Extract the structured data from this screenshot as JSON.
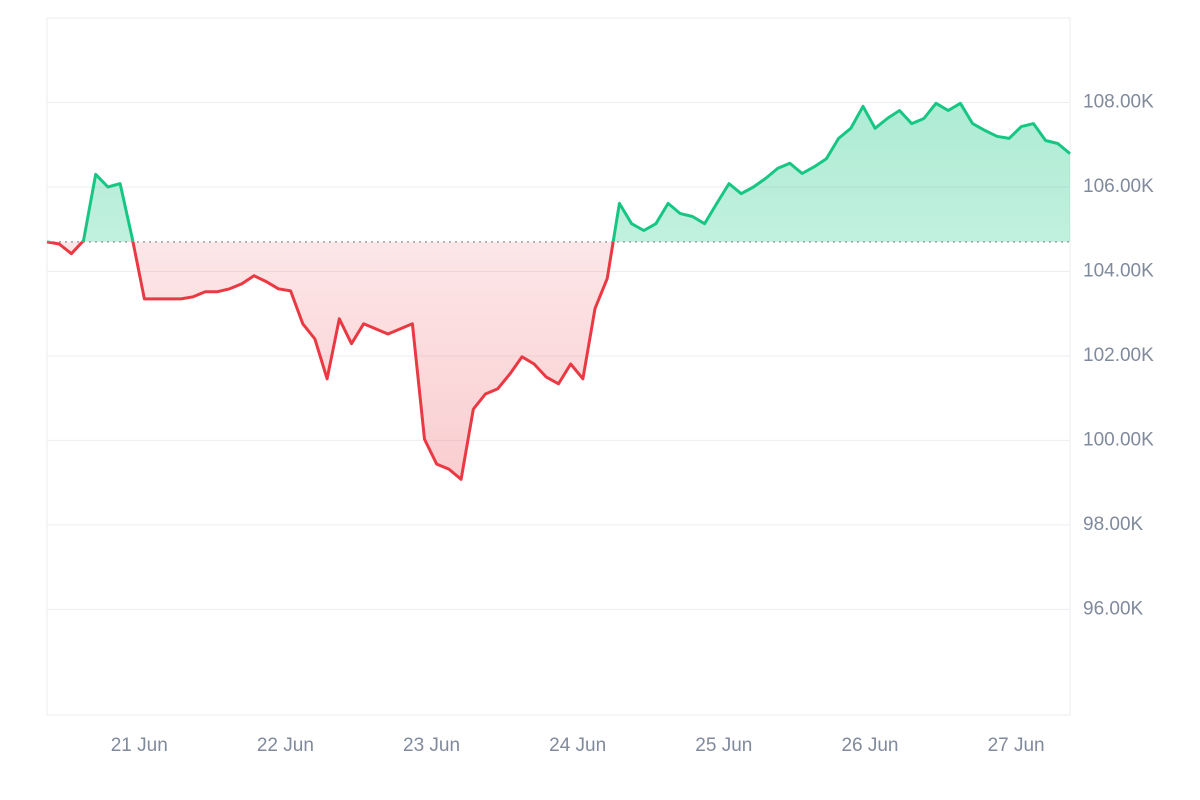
{
  "chart_data": {
    "type": "line",
    "categories": [
      null,
      null,
      null,
      null,
      null,
      null,
      null,
      "21 Jun",
      null,
      null,
      null,
      null,
      null,
      null,
      null,
      null,
      null,
      null,
      null,
      "22 Jun",
      null,
      null,
      null,
      null,
      null,
      null,
      null,
      null,
      null,
      null,
      null,
      "23 Jun",
      null,
      null,
      null,
      null,
      null,
      null,
      null,
      null,
      null,
      null,
      null,
      "24 Jun",
      null,
      null,
      null,
      null,
      null,
      null,
      null,
      null,
      null,
      null,
      null,
      "25 Jun",
      null,
      null,
      null,
      null,
      null,
      null,
      null,
      null,
      null,
      null,
      null,
      "26 Jun",
      null,
      null,
      null,
      null,
      null,
      null,
      null,
      null,
      null,
      null,
      null,
      "27 Jun",
      null,
      null,
      null,
      null,
      null
    ],
    "values": [
      104700,
      104650,
      104420,
      104730,
      106300,
      106000,
      106080,
      104780,
      103350,
      103350,
      103350,
      103350,
      103400,
      103520,
      103520,
      103590,
      103710,
      103900,
      103760,
      103590,
      103540,
      102760,
      102400,
      101460,
      102880,
      102290,
      102760,
      102640,
      102520,
      102640,
      102760,
      100030,
      99440,
      99320,
      99080,
      100740,
      101100,
      101220,
      101570,
      101980,
      101810,
      101500,
      101340,
      101810,
      101460,
      103120,
      103830,
      105610,
      105130,
      104970,
      105130,
      105610,
      105370,
      105300,
      105130,
      105610,
      106080,
      105840,
      106000,
      106200,
      106440,
      106560,
      106320,
      106480,
      106670,
      107150,
      107390,
      107910,
      107390,
      107620,
      107810,
      107500,
      107620,
      107980,
      107810,
      107980,
      107500,
      107340,
      107200,
      107150,
      107430,
      107500,
      107100,
      107030,
      106790
    ],
    "up_color": "#16c784",
    "down_color": "#ea3943",
    "ylim": [
      93500,
      110000
    ],
    "yticks": [
      {
        "value": 96000,
        "label": "96.00K"
      },
      {
        "value": 98000,
        "label": "98.00K"
      },
      {
        "value": 100000,
        "label": "100.00K"
      },
      {
        "value": 102000,
        "label": "102.00K"
      },
      {
        "value": 104000,
        "label": "104.00K"
      },
      {
        "value": 106000,
        "label": "106.00K"
      },
      {
        "value": 108000,
        "label": "108.00K"
      }
    ],
    "grid": true
  }
}
